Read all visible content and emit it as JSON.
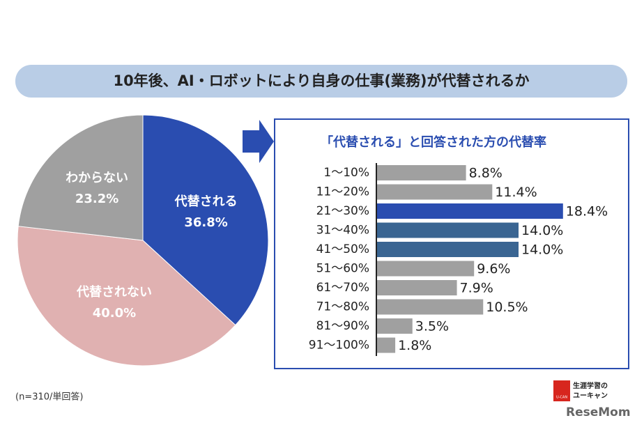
{
  "title": "10年後、AI・ロボットにより自身の仕事(業務)が代替されるか",
  "chart_data": [
    {
      "type": "pie",
      "categories": [
        "代替される",
        "代替されない",
        "わからない"
      ],
      "values": [
        36.8,
        40.0,
        23.2
      ],
      "value_labels": [
        "36.8%",
        "40.0%",
        "23.2%"
      ],
      "colors": [
        "#2a4db0",
        "#e0b1b1",
        "#a0a0a0"
      ]
    },
    {
      "type": "hbar",
      "title": "「代替される」と回答された方の代替率",
      "categories": [
        "1〜10%",
        "11〜20%",
        "21〜30%",
        "31〜40%",
        "41〜50%",
        "51〜60%",
        "61〜70%",
        "71〜80%",
        "81〜90%",
        "91〜100%"
      ],
      "values": [
        8.8,
        11.4,
        18.4,
        14.0,
        14.0,
        9.6,
        7.9,
        10.5,
        3.5,
        1.8
      ],
      "value_labels": [
        "8.8%",
        "11.4%",
        "18.4%",
        "14.0%",
        "14.0%",
        "9.6%",
        "7.9%",
        "10.5%",
        "3.5%",
        "1.8%"
      ],
      "colors": [
        "#a0a0a0",
        "#a0a0a0",
        "#2a4db0",
        "#3a6592",
        "#3a6592",
        "#a0a0a0",
        "#a0a0a0",
        "#a0a0a0",
        "#a0a0a0",
        "#a0a0a0"
      ]
    }
  ],
  "footnote": "(n=310/単回答)",
  "logo": {
    "mark": "U-CAN",
    "line1": "生涯学習の",
    "line2": "ユーキャン",
    "site": "ReseMom"
  }
}
